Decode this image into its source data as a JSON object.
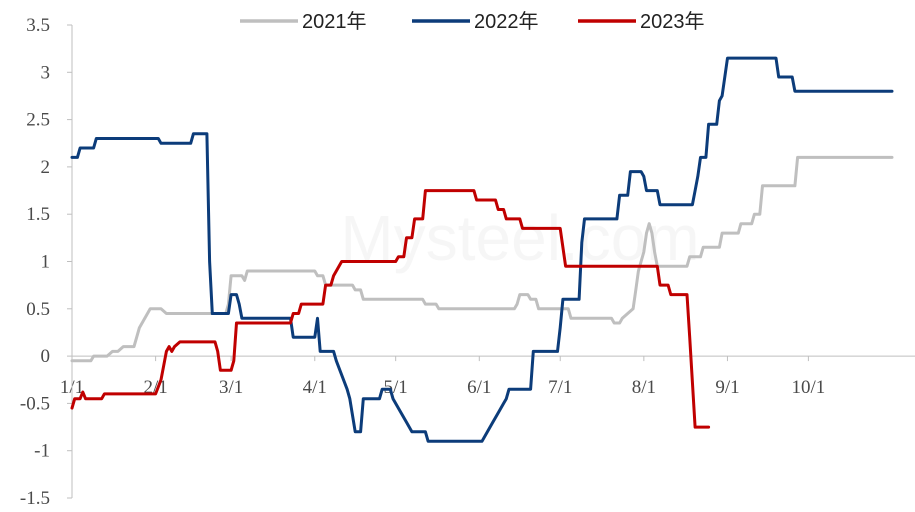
{
  "chart_data": {
    "type": "line",
    "title": "",
    "xlabel": "",
    "ylabel": "",
    "ylim": [
      -1.5,
      3.5
    ],
    "yticks": [
      "3.5",
      "3",
      "2.5",
      "2",
      "1.5",
      "1",
      "0.5",
      "0",
      "-0.5",
      "-1",
      "-1.5"
    ],
    "x_ticks": [
      {
        "label": "1/1",
        "day": 1
      },
      {
        "label": "2/1",
        "day": 32
      },
      {
        "label": "3/1",
        "day": 60
      },
      {
        "label": "4/1",
        "day": 91
      },
      {
        "label": "5/1",
        "day": 121
      },
      {
        "label": "6/1",
        "day": 152
      },
      {
        "label": "7/1",
        "day": 182
      },
      {
        "label": "8/1",
        "day": 213
      },
      {
        "label": "9/1",
        "day": 244
      },
      {
        "label": "10/1",
        "day": 274
      }
    ],
    "xlim": [
      1,
      305
    ],
    "legend_position": "top",
    "series": [
      {
        "name": "2021年",
        "color": "#BFBFBF",
        "points": [
          [
            1,
            -0.05
          ],
          [
            8,
            -0.05
          ],
          [
            9,
            0
          ],
          [
            14,
            0
          ],
          [
            16,
            0.05
          ],
          [
            18,
            0.05
          ],
          [
            20,
            0.1
          ],
          [
            24,
            0.1
          ],
          [
            25,
            0.2
          ],
          [
            26,
            0.3
          ],
          [
            27,
            0.35
          ],
          [
            28,
            0.4
          ],
          [
            30,
            0.5
          ],
          [
            34,
            0.5
          ],
          [
            36,
            0.45
          ],
          [
            58,
            0.45
          ],
          [
            59,
            0.55
          ],
          [
            60,
            0.85
          ],
          [
            64,
            0.85
          ],
          [
            65,
            0.8
          ],
          [
            66,
            0.9
          ],
          [
            91,
            0.9
          ],
          [
            92,
            0.85
          ],
          [
            94,
            0.85
          ],
          [
            95,
            0.75
          ],
          [
            105,
            0.75
          ],
          [
            106,
            0.7
          ],
          [
            108,
            0.7
          ],
          [
            109,
            0.6
          ],
          [
            131,
            0.6
          ],
          [
            132,
            0.55
          ],
          [
            136,
            0.55
          ],
          [
            137,
            0.5
          ],
          [
            165,
            0.5
          ],
          [
            166,
            0.55
          ],
          [
            167,
            0.65
          ],
          [
            170,
            0.65
          ],
          [
            171,
            0.6
          ],
          [
            173,
            0.6
          ],
          [
            174,
            0.5
          ],
          [
            185,
            0.5
          ],
          [
            186,
            0.4
          ],
          [
            201,
            0.4
          ],
          [
            202,
            0.35
          ],
          [
            204,
            0.35
          ],
          [
            205,
            0.4
          ],
          [
            207,
            0.45
          ],
          [
            209,
            0.5
          ],
          [
            210,
            0.7
          ],
          [
            211,
            0.9
          ],
          [
            213,
            1.1
          ],
          [
            214,
            1.3
          ],
          [
            215,
            1.4
          ],
          [
            216,
            1.3
          ],
          [
            217,
            1.1
          ],
          [
            218,
            0.95
          ],
          [
            229,
            0.95
          ],
          [
            230,
            1.05
          ],
          [
            234,
            1.05
          ],
          [
            235,
            1.15
          ],
          [
            241,
            1.15
          ],
          [
            242,
            1.3
          ],
          [
            248,
            1.3
          ],
          [
            249,
            1.4
          ],
          [
            253,
            1.4
          ],
          [
            254,
            1.5
          ],
          [
            256,
            1.5
          ],
          [
            257,
            1.8
          ],
          [
            269,
            1.8
          ],
          [
            270,
            2.1
          ],
          [
            305,
            2.1
          ]
        ]
      },
      {
        "name": "2022年",
        "color": "#0C3C7A",
        "points": [
          [
            1,
            2.1
          ],
          [
            3,
            2.1
          ],
          [
            4,
            2.2
          ],
          [
            9,
            2.2
          ],
          [
            10,
            2.3
          ],
          [
            33,
            2.3
          ],
          [
            34,
            2.25
          ],
          [
            45,
            2.25
          ],
          [
            46,
            2.35
          ],
          [
            51,
            2.35
          ],
          [
            52,
            1.0
          ],
          [
            53,
            0.45
          ],
          [
            59,
            0.45
          ],
          [
            60,
            0.65
          ],
          [
            62,
            0.65
          ],
          [
            63,
            0.55
          ],
          [
            64,
            0.4
          ],
          [
            82,
            0.4
          ],
          [
            83,
            0.2
          ],
          [
            91,
            0.2
          ],
          [
            92,
            0.4
          ],
          [
            93,
            0.05
          ],
          [
            98,
            0.05
          ],
          [
            99,
            -0.05
          ],
          [
            103,
            -0.35
          ],
          [
            104,
            -0.45
          ],
          [
            106,
            -0.8
          ],
          [
            108,
            -0.8
          ],
          [
            109,
            -0.45
          ],
          [
            115,
            -0.45
          ],
          [
            116,
            -0.35
          ],
          [
            119,
            -0.35
          ],
          [
            120,
            -0.45
          ],
          [
            123,
            -0.6
          ],
          [
            125,
            -0.7
          ],
          [
            127,
            -0.8
          ],
          [
            132,
            -0.8
          ],
          [
            133,
            -0.9
          ],
          [
            153,
            -0.9
          ],
          [
            155,
            -0.8
          ],
          [
            157,
            -0.7
          ],
          [
            159,
            -0.6
          ],
          [
            161,
            -0.5
          ],
          [
            162,
            -0.45
          ],
          [
            163,
            -0.35
          ],
          [
            171,
            -0.35
          ],
          [
            172,
            0.05
          ],
          [
            181,
            0.05
          ],
          [
            182,
            0.3
          ],
          [
            183,
            0.6
          ],
          [
            189,
            0.6
          ],
          [
            190,
            1.2
          ],
          [
            191,
            1.45
          ],
          [
            203,
            1.45
          ],
          [
            204,
            1.7
          ],
          [
            207,
            1.7
          ],
          [
            208,
            1.95
          ],
          [
            212,
            1.95
          ],
          [
            213,
            1.9
          ],
          [
            214,
            1.75
          ],
          [
            218,
            1.75
          ],
          [
            219,
            1.6
          ],
          [
            231,
            1.6
          ],
          [
            232,
            1.75
          ],
          [
            233,
            1.9
          ],
          [
            234,
            2.1
          ],
          [
            236,
            2.1
          ],
          [
            237,
            2.45
          ],
          [
            240,
            2.45
          ],
          [
            241,
            2.7
          ],
          [
            242,
            2.75
          ],
          [
            244,
            3.15
          ],
          [
            262,
            3.15
          ],
          [
            263,
            2.95
          ],
          [
            268,
            2.95
          ],
          [
            269,
            2.8
          ],
          [
            305,
            2.8
          ]
        ]
      },
      {
        "name": "2023年",
        "color": "#C00000",
        "points": [
          [
            1,
            -0.55
          ],
          [
            2,
            -0.45
          ],
          [
            4,
            -0.45
          ],
          [
            5,
            -0.38
          ],
          [
            6,
            -0.45
          ],
          [
            12,
            -0.45
          ],
          [
            13,
            -0.4
          ],
          [
            32,
            -0.4
          ],
          [
            34,
            -0.25
          ],
          [
            35,
            -0.1
          ],
          [
            36,
            0.05
          ],
          [
            37,
            0.1
          ],
          [
            38,
            0.05
          ],
          [
            39,
            0.1
          ],
          [
            41,
            0.15
          ],
          [
            54,
            0.15
          ],
          [
            55,
            0.05
          ],
          [
            56,
            -0.15
          ],
          [
            60,
            -0.15
          ],
          [
            61,
            -0.05
          ],
          [
            62,
            0.35
          ],
          [
            82,
            0.35
          ],
          [
            83,
            0.45
          ],
          [
            85,
            0.45
          ],
          [
            86,
            0.55
          ],
          [
            94,
            0.55
          ],
          [
            95,
            0.75
          ],
          [
            97,
            0.75
          ],
          [
            98,
            0.85
          ],
          [
            100,
            0.95
          ],
          [
            101,
            1.0
          ],
          [
            121,
            1.0
          ],
          [
            122,
            1.05
          ],
          [
            124,
            1.05
          ],
          [
            125,
            1.25
          ],
          [
            127,
            1.25
          ],
          [
            128,
            1.45
          ],
          [
            131,
            1.45
          ],
          [
            132,
            1.75
          ],
          [
            150,
            1.75
          ],
          [
            151,
            1.65
          ],
          [
            158,
            1.65
          ],
          [
            159,
            1.55
          ],
          [
            161,
            1.55
          ],
          [
            162,
            1.45
          ],
          [
            167,
            1.45
          ],
          [
            168,
            1.35
          ],
          [
            182,
            1.35
          ],
          [
            184,
            0.95
          ],
          [
            218,
            0.95
          ],
          [
            219,
            0.75
          ],
          [
            222,
            0.75
          ],
          [
            223,
            0.65
          ],
          [
            229,
            0.65
          ],
          [
            230,
            0.2
          ],
          [
            232,
            -0.75
          ],
          [
            237,
            -0.75
          ]
        ]
      }
    ]
  }
}
